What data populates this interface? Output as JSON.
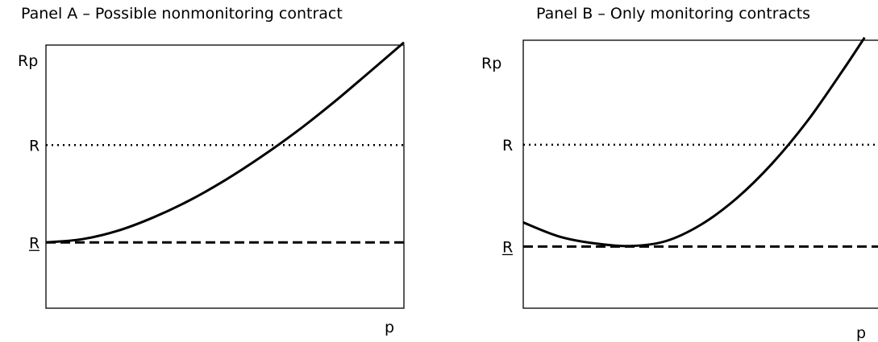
{
  "chart_data": [
    {
      "type": "line",
      "title": "Panel A – Possible nonmonitoring contract",
      "xlabel": "p",
      "ylabel": "Rp",
      "xlim": [
        0,
        1
      ],
      "ylim": [
        0,
        1
      ],
      "ytick_labels": {
        "upper": "R",
        "lower": "R"
      },
      "lower_tick_underlined": true,
      "series": [
        {
          "style": "solid",
          "x": [
            0,
            0.1,
            0.2,
            0.3,
            0.4,
            0.5,
            0.6,
            0.7,
            0.8,
            0.9,
            1.0
          ],
          "y": [
            0.25,
            0.262,
            0.294,
            0.345,
            0.409,
            0.486,
            0.574,
            0.671,
            0.778,
            0.893,
            1.01
          ]
        },
        {
          "style": "dotted",
          "x": [
            0,
            1
          ],
          "y": [
            0.62,
            0.62
          ]
        },
        {
          "style": "dashed",
          "x": [
            0,
            1
          ],
          "y": [
            0.25,
            0.25
          ]
        }
      ]
    },
    {
      "type": "line",
      "title": "Panel B – Only monitoring contracts",
      "xlabel": "p",
      "ylabel": "Rp",
      "xlim": [
        0,
        1
      ],
      "ylim": [
        0,
        1
      ],
      "ytick_labels": {
        "upper": "R",
        "lower": "R"
      },
      "lower_tick_underlined": true,
      "series": [
        {
          "style": "solid",
          "x": [
            0,
            0.1,
            0.2,
            0.3,
            0.4,
            0.5,
            0.6,
            0.7,
            0.8,
            0.9,
            0.96
          ],
          "y": [
            0.32,
            0.268,
            0.242,
            0.232,
            0.25,
            0.312,
            0.41,
            0.54,
            0.7,
            0.89,
            1.01
          ]
        },
        {
          "style": "dotted",
          "x": [
            0,
            1
          ],
          "y": [
            0.61,
            0.61
          ]
        },
        {
          "style": "dashed",
          "x": [
            0,
            1
          ],
          "y": [
            0.23,
            0.23
          ]
        }
      ]
    }
  ]
}
